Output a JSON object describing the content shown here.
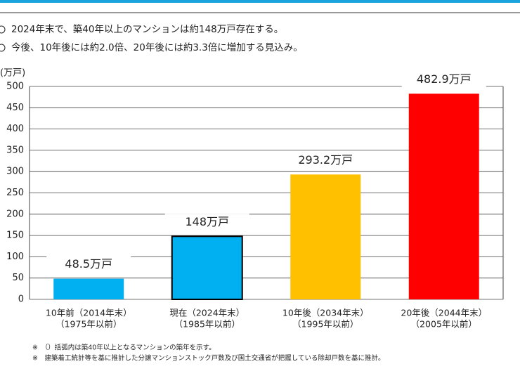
{
  "bullets": [
    "2024年末で、築40年以上のマンションは約148万戸存在する。",
    "今後、10年後には約2.0倍、20年後には約3.3倍に増加する見込み。"
  ],
  "chart_data": {
    "type": "bar",
    "y_axis_label": "(万戸)",
    "categories": [
      [
        "10年前（2014年末）",
        "（1975年以前）"
      ],
      [
        "現在（2024年末）",
        "（1985年以前）"
      ],
      [
        "10年後（2034年末）",
        "（1995年以前）"
      ],
      [
        "20年後（2044年末）",
        "（2005年以前）"
      ]
    ],
    "values": [
      48.5,
      148,
      293.2,
      482.9
    ],
    "value_labels": [
      "48.5万戸",
      "148万戸",
      "293.2万戸",
      "482.9万戸"
    ],
    "colors": [
      "#00b0f0",
      "#00b0f0",
      "#ffc000",
      "#ff0000"
    ],
    "ylim": [
      0,
      500
    ],
    "yticks": [
      0,
      50,
      100,
      150,
      200,
      250,
      300,
      350,
      400,
      450,
      500
    ],
    "grid": true
  },
  "footnotes": [
    "※　（）括弧内は築40年以上となるマンションの築年を示す。",
    "※　建築着工統計等を基に推計した分譲マンションストック戸数及び国土交通省が把握している除却戸数を基に推計。"
  ]
}
